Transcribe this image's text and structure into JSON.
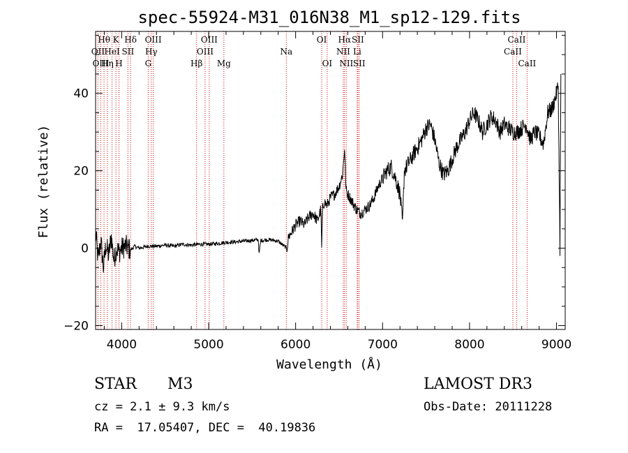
{
  "chart_data": {
    "type": "line",
    "title": "spec-55924-M31_016N38_M1_sp12-129.fits",
    "xlabel": "Wavelength (Å)",
    "ylabel": "Flux (relative)",
    "xlim": [
      3700,
      9100
    ],
    "ylim": [
      -21,
      56
    ],
    "xticks": [
      4000,
      5000,
      6000,
      7000,
      8000,
      9000
    ],
    "yticks": [
      -20,
      0,
      20,
      40
    ],
    "grid": false,
    "series": [
      {
        "name": "spectrum",
        "x": [
          3700,
          3730,
          3760,
          3790,
          3820,
          3850,
          3880,
          3910,
          3940,
          3970,
          4000,
          4050,
          4100,
          4150,
          4200,
          4300,
          4400,
          4500,
          4600,
          4700,
          4800,
          4900,
          5000,
          5100,
          5200,
          5300,
          5400,
          5500,
          5570,
          5580,
          5600,
          5700,
          5800,
          5880,
          5900,
          5920,
          5950,
          6000,
          6050,
          6100,
          6150,
          6200,
          6250,
          6290,
          6300,
          6310,
          6330,
          6360,
          6400,
          6450,
          6500,
          6540,
          6563,
          6580,
          6600,
          6650,
          6700,
          6750,
          6800,
          6850,
          6900,
          6950,
          7000,
          7050,
          7100,
          7150,
          7200,
          7230,
          7250,
          7300,
          7350,
          7400,
          7450,
          7500,
          7550,
          7600,
          7650,
          7700,
          7750,
          7800,
          7850,
          7900,
          7950,
          8000,
          8050,
          8100,
          8150,
          8200,
          8250,
          8300,
          8350,
          8400,
          8450,
          8500,
          8550,
          8600,
          8650,
          8700,
          8750,
          8800,
          8850,
          8900,
          8950,
          9000,
          9020,
          9040,
          9050
        ],
        "y": [
          4,
          -3,
          2,
          -5,
          1,
          -2,
          3,
          -3,
          0,
          -1,
          0,
          0.5,
          -0.5,
          0.5,
          0,
          0.5,
          0.5,
          0.8,
          0.5,
          1,
          0.8,
          1,
          1,
          1.2,
          1.5,
          1.6,
          1.8,
          2,
          2.2,
          -1.5,
          2,
          2.2,
          1.8,
          0.3,
          0,
          3,
          4,
          6,
          7,
          6,
          8,
          9,
          7,
          10,
          0,
          10,
          12,
          11,
          13,
          14,
          16,
          19,
          26,
          15,
          14,
          12,
          10,
          9,
          10,
          11,
          13,
          16,
          18,
          20,
          21,
          18,
          14,
          6,
          20,
          22,
          24,
          26,
          28,
          31,
          32,
          28,
          22,
          19,
          20,
          23,
          26,
          28,
          30,
          33,
          35,
          33,
          30,
          32,
          34,
          33,
          30,
          32,
          31,
          30,
          30,
          31,
          32,
          28,
          30,
          29,
          27,
          35,
          36,
          40,
          42,
          0,
          45
        ]
      }
    ],
    "lines": [
      {
        "label": "Hθ",
        "x": 3797,
        "row": 1
      },
      {
        "label": "OII",
        "x": 3727,
        "row": 2
      },
      {
        "label": "OIII",
        "x": 3760,
        "row": 3
      },
      {
        "label": "Hη",
        "x": 3835,
        "row": 3
      },
      {
        "label": "K",
        "x": 3934,
        "row": 1
      },
      {
        "label": "HeI",
        "x": 3889,
        "row": 2
      },
      {
        "label": "SII",
        "x": 4072,
        "row": 2
      },
      {
        "label": "H",
        "x": 3969,
        "row": 3
      },
      {
        "label": "Hδ",
        "x": 4102,
        "row": 1
      },
      {
        "label": "OIII",
        "x": 4363,
        "row": 1
      },
      {
        "label": "Hγ",
        "x": 4340,
        "row": 2
      },
      {
        "label": "G",
        "x": 4305,
        "row": 3
      },
      {
        "label": "Hβ",
        "x": 4861,
        "row": 3
      },
      {
        "label": "OIII",
        "x": 4959,
        "row": 2
      },
      {
        "label": "OIII",
        "x": 5007,
        "row": 1
      },
      {
        "label": "Mg",
        "x": 5175,
        "row": 3
      },
      {
        "label": "Na",
        "x": 5893,
        "row": 2
      },
      {
        "label": "OI",
        "x": 6300,
        "row": 1
      },
      {
        "label": "OI",
        "x": 6363,
        "row": 3
      },
      {
        "label": "NII",
        "x": 6548,
        "row": 2
      },
      {
        "label": "Hα",
        "x": 6563,
        "row": 1
      },
      {
        "label": "NII",
        "x": 6583,
        "row": 3
      },
      {
        "label": "Li",
        "x": 6708,
        "row": 2
      },
      {
        "label": "SII",
        "x": 6716,
        "row": 1
      },
      {
        "label": "SII",
        "x": 6731,
        "row": 3
      },
      {
        "label": "CaII",
        "x": 8498,
        "row": 2
      },
      {
        "label": "CaII",
        "x": 8542,
        "row": 1
      },
      {
        "label": "CaII",
        "x": 8662,
        "row": 3
      }
    ]
  },
  "info": {
    "class": "STAR",
    "subclass": "M3",
    "survey": "LAMOST DR3",
    "cz": "cz = 2.1 ± 9.3 km/s",
    "obs_date": "Obs-Date: 20111228",
    "coords": "RA =  17.05407, DEC =  40.19836"
  }
}
